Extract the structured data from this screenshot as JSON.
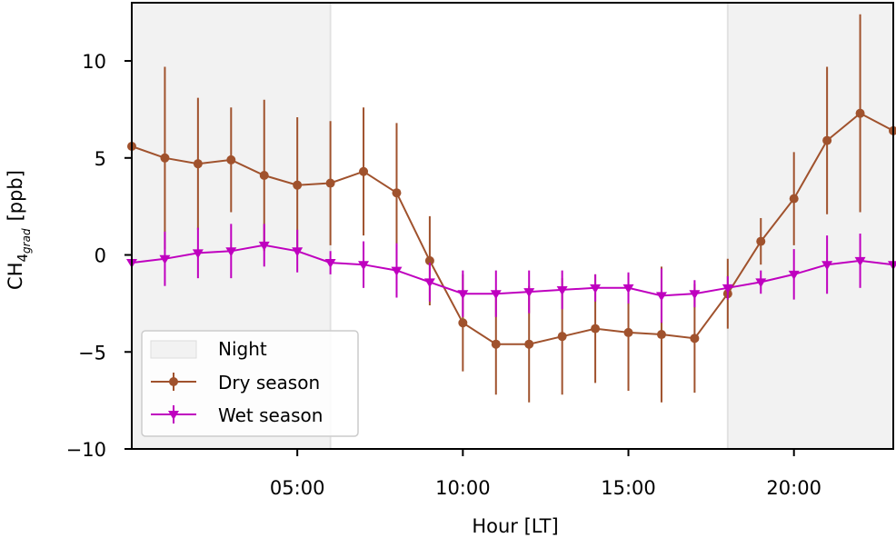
{
  "chart_data": {
    "type": "line",
    "xlabel": "Hour [LT]",
    "ylabel_main": "CH",
    "ylabel_sub": "4",
    "ylabel_subsub": "grad",
    "ylabel_unit": "[ppb]",
    "xlim": [
      0,
      23
    ],
    "ylim": [
      -10,
      13
    ],
    "xticks": [
      5,
      10,
      15,
      20
    ],
    "xtick_labels": [
      "05:00",
      "10:00",
      "15:00",
      "20:00"
    ],
    "yticks": [
      -10,
      -5,
      0,
      5,
      10
    ],
    "ytick_labels": [
      "−10",
      "−5",
      "0",
      "5",
      "10"
    ],
    "night_spans": [
      [
        0,
        6
      ],
      [
        18,
        23
      ]
    ],
    "x": [
      0,
      1,
      2,
      3,
      4,
      5,
      6,
      7,
      8,
      9,
      10,
      11,
      12,
      13,
      14,
      15,
      16,
      17,
      18,
      19,
      20,
      21,
      22,
      23
    ],
    "series": [
      {
        "name": "Dry season",
        "color": "#a0522d",
        "marker": "circle",
        "values": [
          5.6,
          5.0,
          4.7,
          4.9,
          4.1,
          3.6,
          3.7,
          4.3,
          3.2,
          -0.3,
          -3.5,
          -4.6,
          -4.6,
          -4.2,
          -3.8,
          -4.0,
          -4.1,
          -4.3,
          -2.0,
          0.7,
          2.9,
          5.9,
          7.3,
          6.4
        ],
        "errors": [
          3.0,
          4.7,
          3.4,
          2.7,
          3.9,
          3.5,
          3.2,
          3.3,
          3.6,
          2.3,
          2.5,
          2.6,
          3.0,
          3.0,
          2.8,
          3.0,
          3.5,
          2.8,
          1.8,
          1.2,
          2.4,
          3.8,
          5.1,
          3.0
        ]
      },
      {
        "name": "Wet season",
        "color": "#bf00bf",
        "marker": "triangle-down",
        "values": [
          -0.4,
          -0.2,
          0.1,
          0.2,
          0.5,
          0.2,
          -0.4,
          -0.5,
          -0.8,
          -1.4,
          -2.0,
          -2.0,
          -1.9,
          -1.8,
          -1.7,
          -1.7,
          -2.1,
          -2.0,
          -1.7,
          -1.4,
          -1.0,
          -0.5,
          -0.3,
          -0.5
        ],
        "errors": [
          1.0,
          1.4,
          1.3,
          1.4,
          1.1,
          1.1,
          0.6,
          1.2,
          1.4,
          1.0,
          1.2,
          1.2,
          1.1,
          1.0,
          0.7,
          0.8,
          1.4,
          0.7,
          0.6,
          0.6,
          1.3,
          1.5,
          1.4,
          1.0
        ]
      }
    ],
    "legend": {
      "placement": "lower-left",
      "entries": [
        "Night",
        "Dry season",
        "Wet season"
      ],
      "night_color": "#f2f2f2"
    },
    "grid": false
  }
}
